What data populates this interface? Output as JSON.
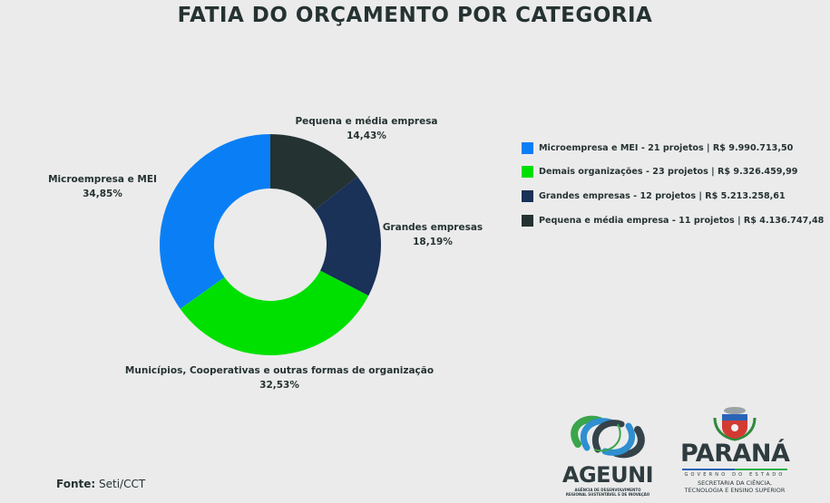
{
  "title": "FATIA DO ORÇAMENTO POR CATEGORIA",
  "chart_data": {
    "type": "pie",
    "subtype": "donut",
    "title": "FATIA DO ORÇAMENTO POR CATEGORIA",
    "categories": [
      "Pequena e média empresa",
      "Grandes empresas",
      "Municípios, Cooperativas e outras formas de organização",
      "Microempresa e MEI"
    ],
    "values": [
      14.43,
      18.19,
      32.53,
      34.85
    ],
    "value_labels": [
      "14,43%",
      "18,19%",
      "32,53%",
      "34,85%"
    ],
    "colors": [
      "#243232",
      "#1a3158",
      "#00e000",
      "#0a7ff5"
    ],
    "start_angle_deg": 0,
    "direction": "clockwise",
    "legend_position": "right",
    "legend": [
      {
        "label": "Microempresa e MEI -  21 projetos | R$ 9.990.713,50",
        "color": "#0a7ff5",
        "projects": 21,
        "amount": "R$ 9.990.713,50"
      },
      {
        "label": "Demais organizações - 23  projetos | R$ 9.326.459,99",
        "color": "#00e000",
        "projects": 23,
        "amount": "R$ 9.326.459,99"
      },
      {
        "label": "Grandes empresas - 12 projetos | R$ 5.213.258,61",
        "color": "#1a3158",
        "projects": 12,
        "amount": "R$ 5.213.258,61"
      },
      {
        "label": "Pequena e média empresa - 11 projetos | R$ 4.136.747,48",
        "color": "#243232",
        "projects": 11,
        "amount": "R$ 4.136.747,48"
      }
    ]
  },
  "slice_labels": [
    {
      "name": "Pequena e média empresa",
      "pct": "14,43%"
    },
    {
      "name": "Grandes empresas",
      "pct": "18,19%"
    },
    {
      "name": "Municípios, Cooperativas e outras formas de organização",
      "pct": "32,53%"
    },
    {
      "name": "Microempresa e MEI",
      "pct": "34,85%"
    }
  ],
  "source": {
    "label": "Fonte:",
    "value": "Seti/CCT"
  },
  "logos": {
    "ageuni": {
      "name": "AGEUNI",
      "subtitle_1": "AGÊNCIA DE DESENVOLVIMENTO",
      "subtitle_2": "REGIONAL SUSTENTÁVEL E DE INOVAÇÃO"
    },
    "parana": {
      "name": "PARANÁ",
      "gov": "GOVERNO DO ESTADO",
      "sec_1": "SECRETARIA DA CIÊNCIA,",
      "sec_2": "TECNOLOGIA E ENSINO SUPERIOR"
    }
  }
}
